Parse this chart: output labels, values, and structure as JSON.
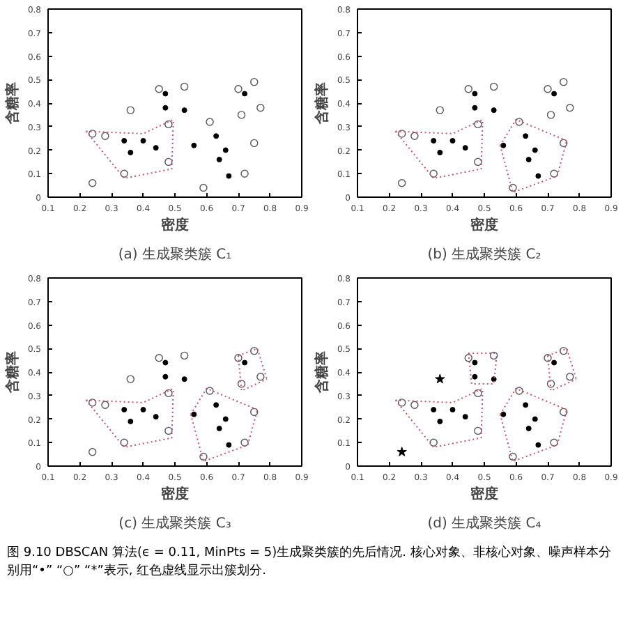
{
  "chart_data": [
    {
      "type": "scatter",
      "title": "(a) 生成聚类簇 C₁",
      "xlabel": "密度",
      "ylabel": "含糖率",
      "xlim": [
        0.1,
        0.9
      ],
      "ylim": [
        0,
        0.8
      ],
      "xticks": [
        0.1,
        0.2,
        0.3,
        0.4,
        0.5,
        0.6,
        0.7,
        0.8,
        0.9
      ],
      "yticks": [
        0,
        0.1,
        0.2,
        0.3,
        0.4,
        0.5,
        0.6,
        0.7,
        0.8
      ],
      "grid": false,
      "series": [
        {
          "type": "scatter",
          "marker": "dot",
          "color": "#000000",
          "x": [
            0.34,
            0.4,
            0.36,
            0.44,
            0.47,
            0.47,
            0.53,
            0.56,
            0.63,
            0.66,
            0.64,
            0.67,
            0.72
          ],
          "values": [
            0.24,
            0.24,
            0.19,
            0.21,
            0.44,
            0.38,
            0.37,
            0.22,
            0.26,
            0.2,
            0.16,
            0.09,
            0.44
          ]
        },
        {
          "type": "scatter",
          "marker": "circle",
          "color": "#555555",
          "x": [
            0.24,
            0.28,
            0.34,
            0.48,
            0.48,
            0.45,
            0.53,
            0.61,
            0.59,
            0.75,
            0.72,
            0.7,
            0.75,
            0.71,
            0.77,
            0.36,
            0.24
          ],
          "values": [
            0.27,
            0.26,
            0.1,
            0.15,
            0.31,
            0.46,
            0.47,
            0.32,
            0.04,
            0.23,
            0.1,
            0.46,
            0.49,
            0.35,
            0.38,
            0.37,
            0.06
          ]
        },
        {
          "type": "line",
          "line_style": "dotted",
          "color": "#c8506a",
          "x": [
            0.22,
            0.4,
            0.495
          ],
          "values": [
            0.28,
            0.27,
            0.33
          ]
        },
        {
          "type": "line",
          "line_style": "dotted",
          "color": "#c8506a",
          "x": [
            0.22,
            0.34,
            0.49,
            0.495
          ],
          "values": [
            0.28,
            0.08,
            0.12,
            0.33
          ]
        }
      ]
    },
    {
      "type": "scatter",
      "title": "(b) 生成聚类簇 C₂",
      "xlabel": "密度",
      "ylabel": "含糖率",
      "xlim": [
        0.1,
        0.9
      ],
      "ylim": [
        0,
        0.8
      ],
      "xticks": [
        0.1,
        0.2,
        0.3,
        0.4,
        0.5,
        0.6,
        0.7,
        0.8,
        0.9
      ],
      "yticks": [
        0,
        0.1,
        0.2,
        0.3,
        0.4,
        0.5,
        0.6,
        0.7,
        0.8
      ],
      "grid": false,
      "series": [
        {
          "type": "scatter",
          "marker": "dot",
          "color": "#000000",
          "x": [
            0.34,
            0.4,
            0.36,
            0.44,
            0.47,
            0.47,
            0.53,
            0.56,
            0.63,
            0.66,
            0.64,
            0.67,
            0.72
          ],
          "values": [
            0.24,
            0.24,
            0.19,
            0.21,
            0.44,
            0.38,
            0.37,
            0.22,
            0.26,
            0.2,
            0.16,
            0.09,
            0.44
          ]
        },
        {
          "type": "scatter",
          "marker": "circle",
          "color": "#555555",
          "x": [
            0.24,
            0.28,
            0.34,
            0.48,
            0.48,
            0.45,
            0.53,
            0.61,
            0.59,
            0.75,
            0.72,
            0.7,
            0.75,
            0.71,
            0.77,
            0.36,
            0.24
          ],
          "values": [
            0.27,
            0.26,
            0.1,
            0.15,
            0.31,
            0.46,
            0.47,
            0.32,
            0.04,
            0.23,
            0.1,
            0.46,
            0.49,
            0.35,
            0.38,
            0.37,
            0.06
          ]
        },
        {
          "type": "line",
          "line_style": "dotted",
          "color": "#c8506a",
          "x": [
            0.22,
            0.4,
            0.495
          ],
          "values": [
            0.28,
            0.27,
            0.33
          ]
        },
        {
          "type": "line",
          "line_style": "dotted",
          "color": "#c8506a",
          "x": [
            0.22,
            0.34,
            0.49,
            0.495
          ],
          "values": [
            0.28,
            0.08,
            0.12,
            0.33
          ]
        },
        {
          "type": "line",
          "line_style": "dotted",
          "color": "#c8506a",
          "x": [
            0.55,
            0.6,
            0.76
          ],
          "values": [
            0.22,
            0.33,
            0.24
          ]
        },
        {
          "type": "line",
          "line_style": "dotted",
          "color": "#c8506a",
          "x": [
            0.55,
            0.59,
            0.73,
            0.76
          ],
          "values": [
            0.22,
            0.02,
            0.09,
            0.24
          ]
        }
      ]
    },
    {
      "type": "scatter",
      "title": "(c) 生成聚类簇 C₃",
      "xlabel": "密度",
      "ylabel": "含糖率",
      "xlim": [
        0.1,
        0.9
      ],
      "ylim": [
        0,
        0.8
      ],
      "xticks": [
        0.1,
        0.2,
        0.3,
        0.4,
        0.5,
        0.6,
        0.7,
        0.8,
        0.9
      ],
      "yticks": [
        0,
        0.1,
        0.2,
        0.3,
        0.4,
        0.5,
        0.6,
        0.7,
        0.8
      ],
      "grid": false,
      "series": [
        {
          "type": "scatter",
          "marker": "dot",
          "color": "#000000",
          "x": [
            0.34,
            0.4,
            0.36,
            0.44,
            0.47,
            0.47,
            0.53,
            0.56,
            0.63,
            0.66,
            0.64,
            0.67,
            0.72
          ],
          "values": [
            0.24,
            0.24,
            0.19,
            0.21,
            0.44,
            0.38,
            0.37,
            0.22,
            0.26,
            0.2,
            0.16,
            0.09,
            0.44
          ]
        },
        {
          "type": "scatter",
          "marker": "circle",
          "color": "#555555",
          "x": [
            0.24,
            0.28,
            0.34,
            0.48,
            0.48,
            0.45,
            0.53,
            0.61,
            0.59,
            0.75,
            0.72,
            0.7,
            0.75,
            0.71,
            0.77,
            0.36,
            0.24
          ],
          "values": [
            0.27,
            0.26,
            0.1,
            0.15,
            0.31,
            0.46,
            0.47,
            0.32,
            0.04,
            0.23,
            0.1,
            0.46,
            0.49,
            0.35,
            0.38,
            0.37,
            0.06
          ]
        },
        {
          "type": "line",
          "line_style": "dotted",
          "color": "#c8506a",
          "x": [
            0.22,
            0.4,
            0.495
          ],
          "values": [
            0.28,
            0.27,
            0.33
          ]
        },
        {
          "type": "line",
          "line_style": "dotted",
          "color": "#c8506a",
          "x": [
            0.22,
            0.34,
            0.49,
            0.495
          ],
          "values": [
            0.28,
            0.08,
            0.12,
            0.33
          ]
        },
        {
          "type": "line",
          "line_style": "dotted",
          "color": "#c8506a",
          "x": [
            0.55,
            0.6,
            0.76
          ],
          "values": [
            0.22,
            0.33,
            0.24
          ]
        },
        {
          "type": "line",
          "line_style": "dotted",
          "color": "#c8506a",
          "x": [
            0.55,
            0.59,
            0.73,
            0.76
          ],
          "values": [
            0.22,
            0.02,
            0.09,
            0.24
          ]
        },
        {
          "type": "line",
          "line_style": "dotted",
          "color": "#c8506a",
          "x": [
            0.7,
            0.76,
            0.79
          ],
          "values": [
            0.47,
            0.5,
            0.37
          ]
        },
        {
          "type": "line",
          "line_style": "dotted",
          "color": "#c8506a",
          "x": [
            0.7,
            0.71,
            0.79
          ],
          "values": [
            0.47,
            0.32,
            0.37
          ]
        }
      ]
    },
    {
      "type": "scatter",
      "title": "(d) 生成聚类簇 C₄",
      "xlabel": "密度",
      "ylabel": "含糖率",
      "xlim": [
        0.1,
        0.9
      ],
      "ylim": [
        0,
        0.8
      ],
      "xticks": [
        0.1,
        0.2,
        0.3,
        0.4,
        0.5,
        0.6,
        0.7,
        0.8,
        0.9
      ],
      "yticks": [
        0,
        0.1,
        0.2,
        0.3,
        0.4,
        0.5,
        0.6,
        0.7,
        0.8
      ],
      "grid": false,
      "series": [
        {
          "type": "scatter",
          "marker": "dot",
          "color": "#000000",
          "x": [
            0.34,
            0.4,
            0.36,
            0.44,
            0.47,
            0.47,
            0.53,
            0.56,
            0.63,
            0.66,
            0.64,
            0.67,
            0.72
          ],
          "values": [
            0.24,
            0.24,
            0.19,
            0.21,
            0.44,
            0.38,
            0.37,
            0.22,
            0.26,
            0.2,
            0.16,
            0.09,
            0.44
          ]
        },
        {
          "type": "scatter",
          "marker": "circle",
          "color": "#555555",
          "x": [
            0.24,
            0.28,
            0.34,
            0.48,
            0.48,
            0.45,
            0.53,
            0.61,
            0.59,
            0.75,
            0.72,
            0.7,
            0.75,
            0.71,
            0.77
          ],
          "values": [
            0.27,
            0.26,
            0.1,
            0.15,
            0.31,
            0.46,
            0.47,
            0.32,
            0.04,
            0.23,
            0.1,
            0.46,
            0.49,
            0.35,
            0.38
          ]
        },
        {
          "type": "scatter",
          "marker": "star",
          "color": "#000000",
          "x": [
            0.36,
            0.24
          ],
          "values": [
            0.37,
            0.06
          ]
        },
        {
          "type": "line",
          "line_style": "dotted",
          "color": "#c8506a",
          "x": [
            0.22,
            0.4,
            0.495
          ],
          "values": [
            0.28,
            0.27,
            0.33
          ]
        },
        {
          "type": "line",
          "line_style": "dotted",
          "color": "#c8506a",
          "x": [
            0.22,
            0.34,
            0.49,
            0.495
          ],
          "values": [
            0.28,
            0.08,
            0.12,
            0.33
          ]
        },
        {
          "type": "line",
          "line_style": "dotted",
          "color": "#c8506a",
          "x": [
            0.55,
            0.6,
            0.76
          ],
          "values": [
            0.22,
            0.33,
            0.24
          ]
        },
        {
          "type": "line",
          "line_style": "dotted",
          "color": "#c8506a",
          "x": [
            0.55,
            0.59,
            0.73,
            0.76
          ],
          "values": [
            0.22,
            0.02,
            0.09,
            0.24
          ]
        },
        {
          "type": "line",
          "line_style": "dotted",
          "color": "#c8506a",
          "x": [
            0.7,
            0.76,
            0.79
          ],
          "values": [
            0.47,
            0.5,
            0.37
          ]
        },
        {
          "type": "line",
          "line_style": "dotted",
          "color": "#c8506a",
          "x": [
            0.7,
            0.71,
            0.79
          ],
          "values": [
            0.47,
            0.32,
            0.37
          ]
        },
        {
          "type": "line",
          "line_style": "dotted",
          "color": "#c8506a",
          "x": [
            0.45,
            0.54
          ],
          "values": [
            0.48,
            0.48
          ]
        },
        {
          "type": "line",
          "line_style": "dotted",
          "color": "#c8506a",
          "x": [
            0.45,
            0.46,
            0.53,
            0.54
          ],
          "values": [
            0.48,
            0.35,
            0.35,
            0.48
          ]
        }
      ]
    },
    {
      "type": "other",
      "annotations": [
        "图 9.10  DBSCAN 算法(ϵ = 0.11, MinPts = 5)生成聚类簇的先后情况. 核心对象、非核心对象、噪声样本分别用“•” “○” “*”表示, 红色虚线显示出簇划分."
      ]
    }
  ]
}
